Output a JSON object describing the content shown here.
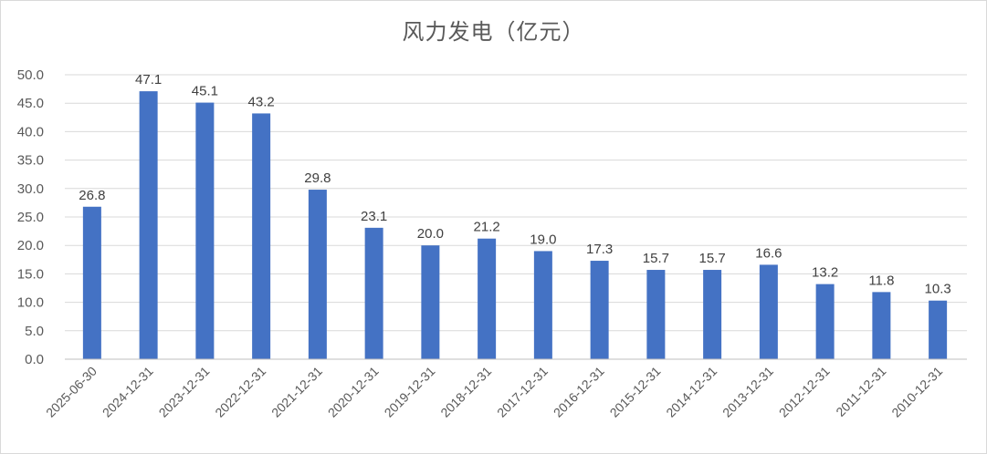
{
  "chart_data": {
    "type": "bar",
    "title": "风力发电（亿元）",
    "xlabel": "",
    "ylabel": "",
    "categories": [
      "2025-06-30",
      "2024-12-31",
      "2023-12-31",
      "2022-12-31",
      "2021-12-31",
      "2020-12-31",
      "2019-12-31",
      "2018-12-31",
      "2017-12-31",
      "2016-12-31",
      "2015-12-31",
      "2014-12-31",
      "2013-12-31",
      "2012-12-31",
      "2011-12-31",
      "2010-12-31"
    ],
    "values": [
      26.8,
      47.1,
      45.1,
      43.2,
      29.8,
      23.1,
      20.0,
      21.2,
      19.0,
      17.3,
      15.7,
      15.7,
      16.6,
      13.2,
      11.8,
      10.3
    ],
    "value_labels": [
      "26.8",
      "47.1",
      "45.1",
      "43.2",
      "29.8",
      "23.1",
      "20.0",
      "21.2",
      "19.0",
      "17.3",
      "15.7",
      "15.7",
      "16.6",
      "13.2",
      "11.8",
      "10.3"
    ],
    "ylim": [
      0,
      50
    ],
    "yticks": [
      "0.0",
      "5.0",
      "10.0",
      "15.0",
      "20.0",
      "25.0",
      "30.0",
      "35.0",
      "40.0",
      "45.0",
      "50.0"
    ],
    "grid": true,
    "legend": "none",
    "bar_color": "#4472c4"
  }
}
